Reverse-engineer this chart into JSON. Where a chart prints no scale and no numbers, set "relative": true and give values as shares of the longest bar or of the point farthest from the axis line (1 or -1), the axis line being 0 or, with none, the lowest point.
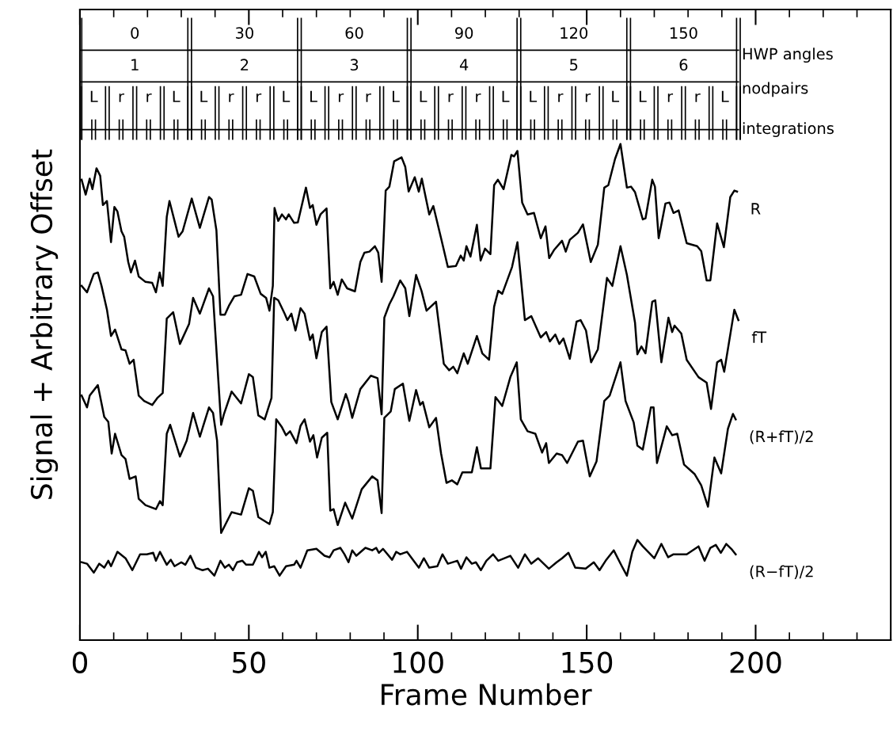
{
  "chart_data": {
    "type": "line",
    "relative": true,
    "xlabel": "Frame Number",
    "ylabel": "Signal + Arbitrary Offset",
    "xlim": [
      0,
      240
    ],
    "xticks": [
      0,
      50,
      100,
      150,
      200
    ],
    "grid": false,
    "legend": false,
    "marker": "none",
    "line_style": "solid",
    "series": [
      {
        "name": "R",
        "color": "#000000",
        "x": [
          0.5,
          1.7,
          2.9,
          3.7,
          4.9,
          6.0,
          6.8,
          8.0,
          9.2,
          10.2,
          11.1,
          12.3,
          13.1,
          14.3,
          15.1,
          16.3,
          17.4,
          19.4,
          21.4,
          22.5,
          23.6,
          24.5,
          25.7,
          26.5,
          29.2,
          30.4,
          33.1,
          35.5,
          38.2,
          39.0,
          40.4,
          41.6,
          42.9,
          44.1,
          45.7,
          47.7,
          49.6,
          51.6,
          53.5,
          55.1,
          56.1,
          57.1,
          57.6,
          58.7,
          59.8,
          61.0,
          61.8,
          63.4,
          64.5,
          66.9,
          68.1,
          68.9,
          70.0,
          71.2,
          73.0,
          74.1,
          75.1,
          76.3,
          77.5,
          79.1,
          81.4,
          83.0,
          84.2,
          85.7,
          87.3,
          88.3,
          89.3,
          89.9,
          90.5,
          91.6,
          93.0,
          95.2,
          96.3,
          97.3,
          99.1,
          100.3,
          101.2,
          103.4,
          104.6,
          106.9,
          108.9,
          111.3,
          112.7,
          113.6,
          114.4,
          115.6,
          117.5,
          118.6,
          119.9,
          121.5,
          122.6,
          123.7,
          125.4,
          127.7,
          128.5,
          129.5,
          130.9,
          132.5,
          134.4,
          136.4,
          137.8,
          138.9,
          140.3,
          142.7,
          143.8,
          145.0,
          147.4,
          148.9,
          151.2,
          153.3,
          155.2,
          156.4,
          158.4,
          160.0,
          161.9,
          163.1,
          164.3,
          166.6,
          167.4,
          169.4,
          170.2,
          171.3,
          173.3,
          174.5,
          175.7,
          177.2,
          179.6,
          182.7,
          183.9,
          185.5,
          186.6,
          188.6,
          190.6,
          192.5,
          193.7,
          194.5
        ],
        "values": [
          0.928,
          0.898,
          0.93,
          0.909,
          0.951,
          0.936,
          0.877,
          0.885,
          0.802,
          0.873,
          0.864,
          0.824,
          0.813,
          0.762,
          0.741,
          0.765,
          0.733,
          0.722,
          0.72,
          0.701,
          0.741,
          0.714,
          0.853,
          0.885,
          0.813,
          0.824,
          0.89,
          0.831,
          0.893,
          0.888,
          0.826,
          0.656,
          0.656,
          0.674,
          0.693,
          0.696,
          0.738,
          0.733,
          0.698,
          0.69,
          0.664,
          0.714,
          0.871,
          0.845,
          0.858,
          0.848,
          0.858,
          0.841,
          0.842,
          0.912,
          0.871,
          0.877,
          0.837,
          0.858,
          0.87,
          0.709,
          0.722,
          0.696,
          0.727,
          0.709,
          0.703,
          0.762,
          0.781,
          0.783,
          0.794,
          0.781,
          0.722,
          0.81,
          0.906,
          0.914,
          0.965,
          0.973,
          0.954,
          0.904,
          0.933,
          0.904,
          0.93,
          0.858,
          0.875,
          0.81,
          0.752,
          0.754,
          0.775,
          0.765,
          0.794,
          0.773,
          0.837,
          0.765,
          0.789,
          0.778,
          0.917,
          0.928,
          0.909,
          0.978,
          0.975,
          0.986,
          0.882,
          0.858,
          0.861,
          0.81,
          0.834,
          0.77,
          0.786,
          0.805,
          0.783,
          0.807,
          0.821,
          0.838,
          0.762,
          0.797,
          0.912,
          0.917,
          0.97,
          1.0,
          0.912,
          0.914,
          0.903,
          0.848,
          0.85,
          0.928,
          0.914,
          0.81,
          0.88,
          0.882,
          0.861,
          0.866,
          0.8,
          0.794,
          0.784,
          0.725,
          0.725,
          0.84,
          0.792,
          0.893,
          0.906,
          0.904
        ]
      },
      {
        "name": "fT",
        "color": "#000000",
        "x": [
          0.5,
          2.1,
          4.1,
          5.3,
          6.4,
          8.0,
          9.2,
          10.4,
          12.3,
          13.5,
          14.7,
          15.9,
          17.4,
          19.0,
          21.4,
          22.9,
          24.5,
          25.7,
          27.6,
          29.6,
          32.3,
          33.5,
          35.5,
          38.2,
          39.4,
          41.8,
          42.6,
          44.9,
          47.7,
          50.0,
          51.2,
          52.8,
          54.7,
          56.7,
          57.5,
          58.7,
          60.6,
          61.4,
          62.6,
          63.8,
          65.3,
          66.5,
          68.1,
          68.9,
          70.0,
          71.6,
          73.0,
          74.4,
          76.3,
          78.7,
          79.5,
          80.6,
          83.0,
          86.1,
          88.1,
          89.3,
          90.1,
          91.6,
          92.8,
          94.8,
          96.3,
          97.5,
          99.5,
          101.1,
          102.6,
          105.4,
          107.7,
          109.3,
          110.5,
          111.7,
          113.6,
          114.8,
          117.5,
          119.1,
          121.1,
          122.6,
          123.8,
          125.0,
          127.9,
          129.5,
          131.7,
          133.6,
          136.4,
          138.0,
          139.1,
          140.7,
          141.9,
          143.1,
          145.0,
          147.0,
          148.2,
          149.8,
          151.3,
          153.3,
          156.0,
          157.6,
          160.0,
          161.9,
          164.3,
          165.0,
          166.2,
          167.4,
          169.4,
          170.3,
          172.1,
          174.2,
          175.3,
          176.0,
          178.0,
          179.6,
          183.1,
          185.5,
          186.8,
          188.6,
          189.8,
          190.7,
          193.7,
          194.9
        ],
        "values": [
          0.714,
          0.701,
          0.738,
          0.741,
          0.714,
          0.666,
          0.613,
          0.626,
          0.586,
          0.584,
          0.557,
          0.565,
          0.493,
          0.482,
          0.474,
          0.488,
          0.498,
          0.648,
          0.661,
          0.597,
          0.637,
          0.69,
          0.658,
          0.709,
          0.693,
          0.434,
          0.455,
          0.501,
          0.477,
          0.536,
          0.53,
          0.453,
          0.445,
          0.488,
          0.69,
          0.685,
          0.658,
          0.645,
          0.658,
          0.624,
          0.669,
          0.658,
          0.605,
          0.616,
          0.568,
          0.621,
          0.632,
          0.48,
          0.445,
          0.496,
          0.48,
          0.448,
          0.506,
          0.533,
          0.528,
          0.455,
          0.65,
          0.677,
          0.693,
          0.725,
          0.709,
          0.653,
          0.736,
          0.704,
          0.664,
          0.682,
          0.557,
          0.544,
          0.551,
          0.538,
          0.578,
          0.557,
          0.613,
          0.578,
          0.565,
          0.672,
          0.704,
          0.698,
          0.752,
          0.802,
          0.645,
          0.653,
          0.61,
          0.621,
          0.602,
          0.616,
          0.597,
          0.608,
          0.567,
          0.642,
          0.645,
          0.624,
          0.56,
          0.586,
          0.73,
          0.714,
          0.794,
          0.736,
          0.64,
          0.576,
          0.592,
          0.578,
          0.682,
          0.685,
          0.56,
          0.65,
          0.621,
          0.634,
          0.618,
          0.565,
          0.53,
          0.519,
          0.466,
          0.56,
          0.565,
          0.541,
          0.666,
          0.645
        ]
      },
      {
        "name": "(R+fT)/2",
        "color": "#000000",
        "x": [
          0.5,
          2.1,
          2.9,
          5.3,
          7.2,
          8.4,
          9.4,
          10.4,
          12.3,
          13.5,
          14.7,
          16.5,
          17.4,
          19.4,
          22.5,
          23.7,
          24.5,
          25.7,
          26.7,
          29.6,
          31.6,
          33.5,
          35.5,
          38.2,
          39.4,
          40.6,
          41.8,
          44.9,
          47.7,
          50.0,
          51.2,
          52.8,
          56.1,
          57.1,
          58.1,
          59.8,
          61.0,
          62.2,
          64.1,
          65.3,
          66.5,
          68.1,
          69.1,
          70.2,
          71.6,
          73.2,
          74.1,
          75.1,
          76.3,
          78.5,
          80.6,
          83.4,
          86.5,
          88.1,
          89.3,
          90.1,
          92.0,
          93.2,
          95.6,
          97.5,
          99.5,
          100.7,
          101.5,
          103.4,
          105.4,
          106.9,
          108.5,
          110.1,
          111.7,
          113.2,
          116.0,
          117.5,
          118.7,
          121.5,
          123.0,
          125.0,
          127.4,
          129.3,
          130.5,
          132.5,
          134.8,
          136.8,
          138.0,
          138.8,
          141.1,
          142.7,
          144.2,
          147.4,
          148.9,
          150.9,
          152.9,
          155.2,
          156.8,
          160.0,
          161.5,
          163.9,
          165.0,
          166.6,
          169.0,
          169.8,
          170.8,
          173.7,
          175.3,
          176.8,
          178.8,
          181.9,
          183.9,
          185.9,
          187.8,
          189.8,
          191.8,
          193.3,
          194.1
        ],
        "values": [
          0.493,
          0.469,
          0.493,
          0.514,
          0.45,
          0.44,
          0.376,
          0.416,
          0.373,
          0.365,
          0.325,
          0.33,
          0.285,
          0.272,
          0.264,
          0.28,
          0.272,
          0.416,
          0.434,
          0.37,
          0.402,
          0.458,
          0.41,
          0.469,
          0.458,
          0.402,
          0.216,
          0.258,
          0.253,
          0.306,
          0.301,
          0.248,
          0.234,
          0.258,
          0.445,
          0.429,
          0.413,
          0.421,
          0.397,
          0.432,
          0.445,
          0.4,
          0.413,
          0.368,
          0.408,
          0.418,
          0.261,
          0.264,
          0.232,
          0.277,
          0.245,
          0.304,
          0.33,
          0.322,
          0.256,
          0.448,
          0.461,
          0.506,
          0.517,
          0.442,
          0.504,
          0.474,
          0.48,
          0.429,
          0.448,
          0.376,
          0.317,
          0.322,
          0.314,
          0.338,
          0.338,
          0.389,
          0.346,
          0.346,
          0.49,
          0.472,
          0.53,
          0.56,
          0.445,
          0.421,
          0.416,
          0.378,
          0.397,
          0.357,
          0.376,
          0.373,
          0.357,
          0.4,
          0.402,
          0.33,
          0.36,
          0.482,
          0.493,
          0.56,
          0.482,
          0.439,
          0.392,
          0.384,
          0.469,
          0.469,
          0.357,
          0.431,
          0.413,
          0.416,
          0.354,
          0.335,
          0.312,
          0.269,
          0.368,
          0.336,
          0.426,
          0.456,
          0.445
        ]
      },
      {
        "name": "(R−fT)/2",
        "color": "#000000",
        "x": [
          0.5,
          2.1,
          4.1,
          5.7,
          7.2,
          8.4,
          9.2,
          11.1,
          13.5,
          15.5,
          17.8,
          19.8,
          21.7,
          22.5,
          23.7,
          25.7,
          26.9,
          28.0,
          30.0,
          31.2,
          32.7,
          34.3,
          36.3,
          37.9,
          39.8,
          41.6,
          42.9,
          44.1,
          45.3,
          46.5,
          48.1,
          49.2,
          51.2,
          53.0,
          53.9,
          55.0,
          56.1,
          57.5,
          59.1,
          61.0,
          63.4,
          64.1,
          65.3,
          67.3,
          70.0,
          72.4,
          73.9,
          75.1,
          77.1,
          78.3,
          79.5,
          80.6,
          81.8,
          84.5,
          86.5,
          87.7,
          88.5,
          89.7,
          92.4,
          93.6,
          94.8,
          96.8,
          100.3,
          101.8,
          103.4,
          105.8,
          107.3,
          108.9,
          111.7,
          112.8,
          114.4,
          116.0,
          117.2,
          118.7,
          120.3,
          122.3,
          123.8,
          127.4,
          129.7,
          131.7,
          133.6,
          135.6,
          138.8,
          141.1,
          142.7,
          144.6,
          146.6,
          149.7,
          152.1,
          153.8,
          155.6,
          158.0,
          160.4,
          161.9,
          163.5,
          165.0,
          166.6,
          170.0,
          172.1,
          174.1,
          175.7,
          179.6,
          183.1,
          184.9,
          186.6,
          188.2,
          189.7,
          191.3,
          192.8,
          194.1
        ],
        "values": [
          0.157,
          0.154,
          0.136,
          0.154,
          0.146,
          0.16,
          0.149,
          0.178,
          0.165,
          0.141,
          0.173,
          0.173,
          0.176,
          0.16,
          0.178,
          0.152,
          0.162,
          0.149,
          0.157,
          0.152,
          0.17,
          0.146,
          0.141,
          0.144,
          0.13,
          0.16,
          0.146,
          0.152,
          0.141,
          0.157,
          0.16,
          0.152,
          0.152,
          0.178,
          0.167,
          0.178,
          0.146,
          0.149,
          0.13,
          0.149,
          0.152,
          0.16,
          0.146,
          0.181,
          0.184,
          0.17,
          0.167,
          0.181,
          0.186,
          0.173,
          0.157,
          0.181,
          0.17,
          0.186,
          0.181,
          0.186,
          0.176,
          0.184,
          0.162,
          0.178,
          0.173,
          0.178,
          0.146,
          0.165,
          0.146,
          0.149,
          0.173,
          0.154,
          0.16,
          0.144,
          0.167,
          0.154,
          0.157,
          0.141,
          0.16,
          0.173,
          0.16,
          0.17,
          0.146,
          0.173,
          0.154,
          0.165,
          0.144,
          0.157,
          0.165,
          0.176,
          0.146,
          0.144,
          0.157,
          0.141,
          0.16,
          0.181,
          0.149,
          0.13,
          0.178,
          0.202,
          0.189,
          0.165,
          0.194,
          0.167,
          0.173,
          0.173,
          0.189,
          0.16,
          0.186,
          0.192,
          0.176,
          0.194,
          0.184,
          0.173
        ]
      }
    ],
    "annotations": [
      "0",
      "30",
      "60",
      "90",
      "120",
      "150",
      "1",
      "2",
      "3",
      "4",
      "5",
      "6",
      "L",
      "r",
      "r",
      "L",
      "L",
      "r",
      "r",
      "L",
      "L",
      "r",
      "r",
      "L",
      "L",
      "r",
      "r",
      "L",
      "L",
      "r",
      "r",
      "L",
      "L",
      "r",
      "r",
      "L",
      "HWP angles",
      "nodpairs",
      "integrations"
    ]
  }
}
